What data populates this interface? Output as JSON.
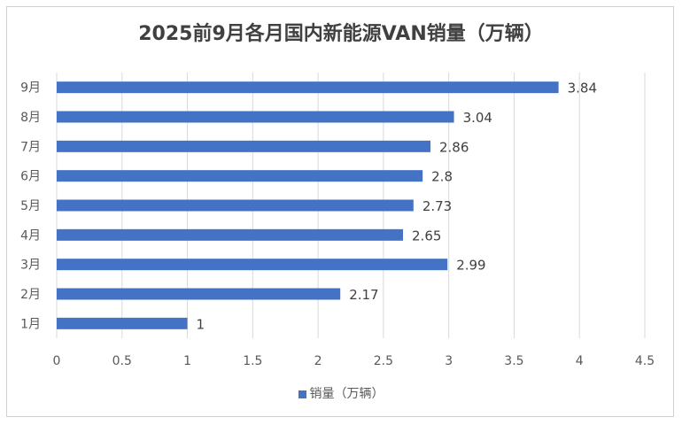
{
  "chart_data": {
    "type": "bar",
    "orientation": "horizontal",
    "title": "2025前9月各月国内新能源VAN销量（万辆）",
    "categories": [
      "1月",
      "2月",
      "3月",
      "4月",
      "5月",
      "6月",
      "7月",
      "8月",
      "9月"
    ],
    "series": [
      {
        "name": "销量（万辆）",
        "values": [
          1,
          2.17,
          2.99,
          2.65,
          2.73,
          2.8,
          2.86,
          3.04,
          3.84
        ],
        "color": "#4472c4"
      }
    ],
    "data_labels": [
      "1",
      "2.17",
      "2.99",
      "2.65",
      "2.73",
      "2.8",
      "2.86",
      "3.04",
      "3.84"
    ],
    "xlim": [
      0,
      4.5
    ],
    "x_ticks": [
      0,
      0.5,
      1,
      1.5,
      2,
      2.5,
      3,
      3.5,
      4,
      4.5
    ],
    "x_tick_labels": [
      "0",
      "0.5",
      "1",
      "1.5",
      "2",
      "2.5",
      "3",
      "3.5",
      "4",
      "4.5"
    ],
    "gridlines": "vertical",
    "legend": "bottom"
  }
}
